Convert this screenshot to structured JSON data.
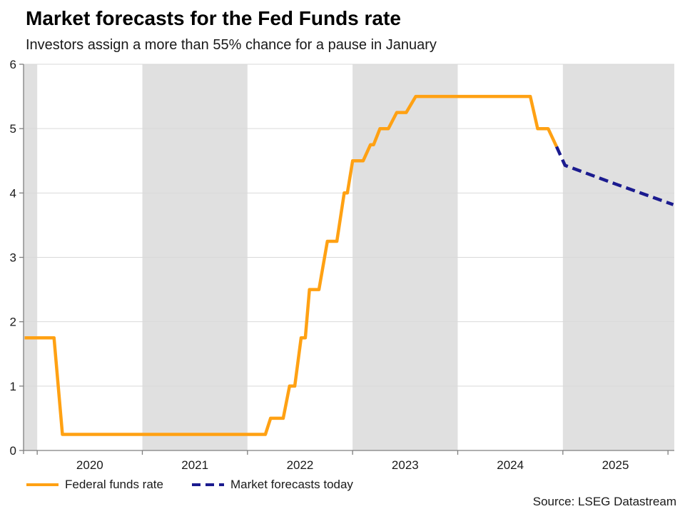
{
  "colors": {
    "fed_funds": "#ffa113",
    "forecast": "#1b1b8f",
    "band": "#e0e0e0",
    "gridline": "#d9d9d9",
    "axis": "#7f7f7f",
    "text": "#1a1a1a"
  },
  "source": "Source: LSEG Datastream",
  "legend": [
    {
      "label": "Federal funds rate",
      "color_key": "fed_funds",
      "style": "solid"
    },
    {
      "label": "Market forecasts today",
      "color_key": "forecast",
      "style": "dashed"
    }
  ],
  "chart_data": {
    "type": "line",
    "title": "Market forecasts for the Fed Funds rate",
    "subtitle": "Investors assign a more than 55% chance for a pause in January",
    "xlabel": "",
    "ylabel": "",
    "xlim": [
      2019.87,
      2026.06
    ],
    "ylim": [
      0,
      6
    ],
    "grid": "horizontal",
    "legend_position": "bottom-left",
    "y_ticks": [
      0,
      1,
      2,
      3,
      4,
      5,
      6
    ],
    "x_ticks": [
      2020,
      2021,
      2022,
      2023,
      2024,
      2025,
      2026
    ],
    "x_tick_labels": [
      {
        "label": "2020",
        "x": 2020.5
      },
      {
        "label": "2021",
        "x": 2021.5
      },
      {
        "label": "2022",
        "x": 2022.5
      },
      {
        "label": "2023",
        "x": 2023.5
      },
      {
        "label": "2024",
        "x": 2024.5
      },
      {
        "label": "2025",
        "x": 2025.5
      }
    ],
    "shaded_bands": [
      [
        2019.87,
        2020.0
      ],
      [
        2021.0,
        2022.0
      ],
      [
        2023.0,
        2024.0
      ],
      [
        2025.0,
        2026.06
      ]
    ],
    "series": [
      {
        "name": "Federal funds rate",
        "data_name": "fed-funds-line",
        "color_key": "fed_funds",
        "dash": null,
        "points": [
          [
            2019.88,
            1.75
          ],
          [
            2020.16,
            1.75
          ],
          [
            2020.24,
            0.25
          ],
          [
            2022.17,
            0.25
          ],
          [
            2022.22,
            0.5
          ],
          [
            2022.34,
            0.5
          ],
          [
            2022.4,
            1.0
          ],
          [
            2022.45,
            1.0
          ],
          [
            2022.51,
            1.75
          ],
          [
            2022.55,
            1.75
          ],
          [
            2022.59,
            2.5
          ],
          [
            2022.68,
            2.5
          ],
          [
            2022.76,
            3.25
          ],
          [
            2022.85,
            3.25
          ],
          [
            2022.92,
            4.0
          ],
          [
            2022.95,
            4.0
          ],
          [
            2023.0,
            4.5
          ],
          [
            2023.1,
            4.5
          ],
          [
            2023.17,
            4.75
          ],
          [
            2023.2,
            4.75
          ],
          [
            2023.26,
            5.0
          ],
          [
            2023.34,
            5.0
          ],
          [
            2023.42,
            5.25
          ],
          [
            2023.51,
            5.25
          ],
          [
            2023.6,
            5.5
          ],
          [
            2024.69,
            5.5
          ],
          [
            2024.76,
            5.0
          ],
          [
            2024.86,
            5.0
          ],
          [
            2024.94,
            4.72
          ]
        ]
      },
      {
        "name": "Market forecasts today",
        "data_name": "forecast-line",
        "color_key": "forecast",
        "dash": [
          13,
          7
        ],
        "points": [
          [
            2024.94,
            4.72
          ],
          [
            2025.02,
            4.43
          ],
          [
            2025.5,
            4.14
          ],
          [
            2026.05,
            3.82
          ]
        ]
      }
    ]
  }
}
